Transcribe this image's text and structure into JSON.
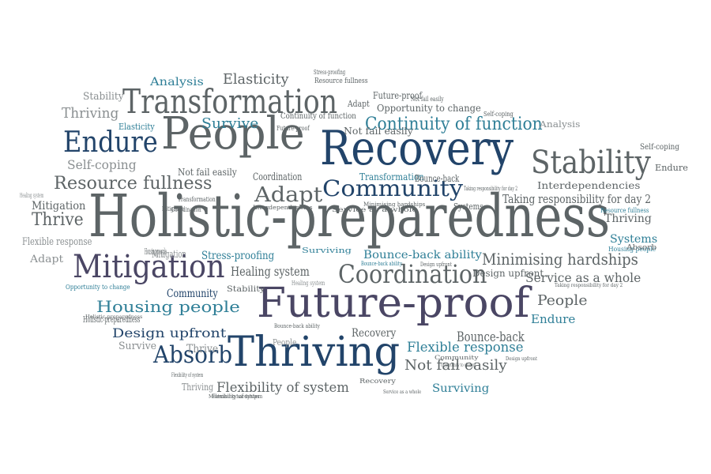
{
  "palette": {
    "slate": "#5d6466",
    "grey": "#8a8f91",
    "navy": "#22446a",
    "teal": "#2f7f97",
    "purple": "#4a4664",
    "background": "#ffffff"
  },
  "words": [
    {
      "text": "Holistic-preparedness",
      "size": 74,
      "color": "slate"
    },
    {
      "text": "Recovery",
      "size": 60,
      "color": "navy"
    },
    {
      "text": "People",
      "size": 56,
      "color": "slate"
    },
    {
      "text": "Future-proof",
      "size": 52,
      "color": "purple"
    },
    {
      "text": "Thriving",
      "size": 52,
      "color": "navy"
    },
    {
      "text": "Transformation",
      "size": 42,
      "color": "slate"
    },
    {
      "text": "Mitigation",
      "size": 40,
      "color": "purple"
    },
    {
      "text": "Stability",
      "size": 40,
      "color": "slate"
    },
    {
      "text": "Endure",
      "size": 36,
      "color": "navy"
    },
    {
      "text": "Coordination",
      "size": 32,
      "color": "slate"
    },
    {
      "text": "Absorb",
      "size": 30,
      "color": "navy"
    },
    {
      "text": "Community",
      "size": 28,
      "color": "navy"
    },
    {
      "text": "Adapt",
      "size": 26,
      "color": "slate"
    },
    {
      "text": "Continuity of function",
      "size": 22,
      "color": "teal"
    },
    {
      "text": "Resource fullness",
      "size": 22,
      "color": "slate"
    },
    {
      "text": "Minimising hardships",
      "size": 20,
      "color": "slate"
    },
    {
      "text": "Housing people",
      "size": 20,
      "color": "teal"
    },
    {
      "text": "Thrive",
      "size": 22,
      "color": "slate"
    },
    {
      "text": "Survive",
      "size": 18,
      "color": "teal"
    },
    {
      "text": "Elasticity",
      "size": 18,
      "color": "slate"
    },
    {
      "text": "Analysis",
      "size": 14,
      "color": "teal"
    },
    {
      "text": "Thriving",
      "size": 18,
      "color": "grey"
    },
    {
      "text": "Stability",
      "size": 13,
      "color": "grey"
    },
    {
      "text": "Self-coping",
      "size": 16,
      "color": "grey"
    },
    {
      "text": "Mitigation",
      "size": 14,
      "color": "slate"
    },
    {
      "text": "Flexible response",
      "size": 13,
      "color": "grey"
    },
    {
      "text": "Adapt",
      "size": 13,
      "color": "grey"
    },
    {
      "text": "Stress-proofing",
      "size": 14,
      "color": "teal"
    },
    {
      "text": "Healing system",
      "size": 16,
      "color": "slate"
    },
    {
      "text": "Bounce-back ability",
      "size": 14,
      "color": "teal"
    },
    {
      "text": "Taking responsibility for day 2",
      "size": 15,
      "color": "slate"
    },
    {
      "text": "Service as a whole",
      "size": 16,
      "color": "slate"
    },
    {
      "text": "Design upfront",
      "size": 16,
      "color": "navy"
    },
    {
      "text": "People",
      "size": 18,
      "color": "slate"
    },
    {
      "text": "Endure",
      "size": 15,
      "color": "teal"
    },
    {
      "text": "Flexible response",
      "size": 17,
      "color": "teal"
    },
    {
      "text": "Bounce-back",
      "size": 17,
      "color": "slate"
    },
    {
      "text": "Not fail easily",
      "size": 18,
      "color": "slate"
    },
    {
      "text": "Surviving",
      "size": 14,
      "color": "teal"
    },
    {
      "text": "Flexibility of system",
      "size": 17,
      "color": "slate"
    },
    {
      "text": "Survive",
      "size": 13,
      "color": "grey"
    },
    {
      "text": "Thrive",
      "size": 14,
      "color": "grey"
    },
    {
      "text": "Thriving",
      "size": 12,
      "color": "grey"
    },
    {
      "text": "Recovery",
      "size": 14,
      "color": "slate"
    },
    {
      "text": "Systems",
      "size": 14,
      "color": "teal"
    },
    {
      "text": "Thriving",
      "size": 14,
      "color": "slate"
    },
    {
      "text": "Interdependencies",
      "size": 12,
      "color": "slate"
    },
    {
      "text": "Holistic-preparedness",
      "size": 11,
      "color": "slate"
    },
    {
      "text": "Analysis",
      "size": 11,
      "color": "grey"
    },
    {
      "text": "Self-coping",
      "size": 10,
      "color": "slate"
    },
    {
      "text": "Endure",
      "size": 11,
      "color": "slate"
    },
    {
      "text": "Opportunity to change",
      "size": 12,
      "color": "slate"
    },
    {
      "text": "Future-proof",
      "size": 12,
      "color": "slate"
    },
    {
      "text": "Not fail easily",
      "size": 12,
      "color": "slate"
    },
    {
      "text": "Not fail easily",
      "size": 8,
      "color": "slate"
    },
    {
      "text": "Continuity of function",
      "size": 10,
      "color": "slate"
    },
    {
      "text": "Future-proof",
      "size": 8,
      "color": "slate"
    },
    {
      "text": "Stress-proofing",
      "size": 8,
      "color": "slate"
    },
    {
      "text": "Resource fullness",
      "size": 9,
      "color": "slate"
    },
    {
      "text": "Adapt",
      "size": 11,
      "color": "slate"
    },
    {
      "text": "Self-coping",
      "size": 8,
      "color": "slate"
    },
    {
      "text": "Elasticity",
      "size": 11,
      "color": "teal"
    },
    {
      "text": "Coordination",
      "size": 13,
      "color": "slate"
    },
    {
      "text": "Not fail easily",
      "size": 12,
      "color": "slate"
    },
    {
      "text": "Transformation",
      "size": 12,
      "color": "teal"
    },
    {
      "text": "Bounce-back",
      "size": 12,
      "color": "slate"
    },
    {
      "text": "Taking responsibility for day 2",
      "size": 7,
      "color": "slate"
    },
    {
      "text": "Transformation",
      "size": 8,
      "color": "slate"
    },
    {
      "text": "Coordination",
      "size": 8,
      "color": "slate"
    },
    {
      "text": "Interdependencies",
      "size": 7,
      "color": "slate"
    },
    {
      "text": "Healing system",
      "size": 8,
      "color": "grey"
    },
    {
      "text": "Mitigation",
      "size": 13,
      "color": "grey"
    },
    {
      "text": "Service as a whole",
      "size": 8,
      "color": "slate"
    },
    {
      "text": "Minimising hardships",
      "size": 7,
      "color": "slate"
    },
    {
      "text": "Systems",
      "size": 11,
      "color": "slate"
    },
    {
      "text": "Resource fullness",
      "size": 8,
      "color": "teal"
    },
    {
      "text": "Housing people",
      "size": 8,
      "color": "teal"
    },
    {
      "text": "Absorb",
      "size": 9,
      "color": "slate"
    },
    {
      "text": "Mitigation",
      "size": 8,
      "color": "slate"
    },
    {
      "text": "Housing people",
      "size": 11,
      "color": "slate"
    },
    {
      "text": "Surviving",
      "size": 9,
      "color": "teal"
    },
    {
      "text": "Bounce-back ability",
      "size": 7,
      "color": "teal"
    },
    {
      "text": "Design upfront",
      "size": 7,
      "color": "slate"
    },
    {
      "text": "Healing system",
      "size": 8,
      "color": "grey"
    },
    {
      "text": "Design upfront",
      "size": 12,
      "color": "slate"
    },
    {
      "text": "Taking responsibility for day 2",
      "size": 6,
      "color": "slate"
    },
    {
      "text": "Opportunity to change",
      "size": 8,
      "color": "teal"
    },
    {
      "text": "Community",
      "size": 14,
      "color": "navy"
    },
    {
      "text": "Stability",
      "size": 10,
      "color": "slate"
    },
    {
      "text": "Holistic-preparedness",
      "size": 6,
      "color": "slate"
    },
    {
      "text": "Bounce-back ability",
      "size": 7,
      "color": "slate"
    },
    {
      "text": "People",
      "size": 11,
      "color": "grey"
    },
    {
      "text": "Community",
      "size": 7,
      "color": "slate"
    },
    {
      "text": "Opportunity to change",
      "size": 6,
      "color": "slate"
    },
    {
      "text": "Design upfront",
      "size": 6,
      "color": "slate"
    },
    {
      "text": "Recovery",
      "size": 8,
      "color": "slate"
    },
    {
      "text": "Flexibility of system",
      "size": 7,
      "color": "slate"
    },
    {
      "text": "Flexibility of system",
      "size": 7,
      "color": "slate"
    },
    {
      "text": "Service as a whole",
      "size": 6,
      "color": "slate"
    },
    {
      "text": "Minimising hardships",
      "size": 6,
      "color": "slate"
    }
  ]
}
